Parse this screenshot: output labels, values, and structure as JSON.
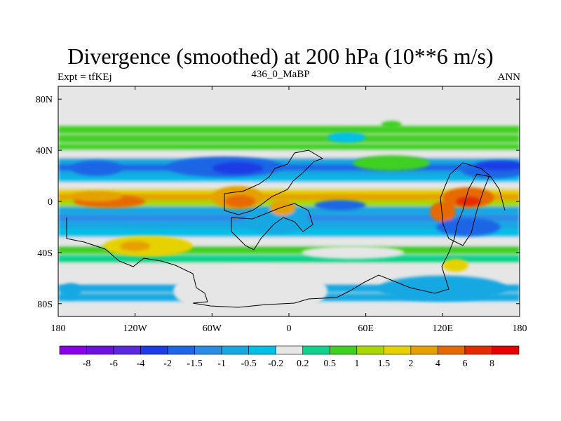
{
  "header": {
    "title": "Divergence (smoothed) at 200 hPa (10**6 m/s)",
    "left_label": "Expt = tfKEj",
    "center_label": "436_0_MaBP",
    "right_label": "ANN"
  },
  "chart_data": {
    "type": "heatmap",
    "title": "Divergence (smoothed) at 200 hPa (10**6 m/s)",
    "xlabel": "",
    "ylabel": "",
    "xlim": [
      -180,
      180
    ],
    "ylim": [
      -90,
      90
    ],
    "x_ticks": [
      {
        "value": -180,
        "label": "180"
      },
      {
        "value": -120,
        "label": "120W"
      },
      {
        "value": -60,
        "label": "60W"
      },
      {
        "value": 0,
        "label": "0"
      },
      {
        "value": 60,
        "label": "60E"
      },
      {
        "value": 120,
        "label": "120E"
      },
      {
        "value": 180,
        "label": "180"
      }
    ],
    "y_ticks": [
      {
        "value": 80,
        "label": "80N"
      },
      {
        "value": 40,
        "label": "40N"
      },
      {
        "value": 0,
        "label": "0"
      },
      {
        "value": -40,
        "label": "40S"
      },
      {
        "value": -80,
        "label": "80S"
      }
    ],
    "colorbar": {
      "levels": [
        "-8",
        "-6",
        "-4",
        "-2",
        "-1.5",
        "-1",
        "-0.5",
        "-0.2",
        "0.2",
        "0.5",
        "1",
        "1.5",
        "2",
        "4",
        "6",
        "8"
      ],
      "colors": [
        "#8a00e8",
        "#7010e0",
        "#5a28e0",
        "#1e3ce6",
        "#1e66e6",
        "#2a8ce6",
        "#16a8e2",
        "#00c0e8",
        "#e6e6e6",
        "#10d28c",
        "#40d020",
        "#a8d800",
        "#e6d200",
        "#e6a000",
        "#e66a00",
        "#e62a00",
        "#e60000"
      ]
    },
    "bands": [
      {
        "lat": 56,
        "value": 0.6
      },
      {
        "lat": 49,
        "value": 0.8
      },
      {
        "lat": 42,
        "value": 0.5
      },
      {
        "lat": 37,
        "value": 0.0
      },
      {
        "lat": 31,
        "value": -0.6
      },
      {
        "lat": 26,
        "value": -2.0
      },
      {
        "lat": 21,
        "value": -1.0
      },
      {
        "lat": 16,
        "value": -0.3
      },
      {
        "lat": 12,
        "value": 0.0
      },
      {
        "lat": 7,
        "value": 1.5
      },
      {
        "lat": 3,
        "value": 2.5
      },
      {
        "lat": -2,
        "value": 1.0
      },
      {
        "lat": -7,
        "value": -1.0
      },
      {
        "lat": -13,
        "value": -1.5
      },
      {
        "lat": -19,
        "value": -0.7
      },
      {
        "lat": -25,
        "value": -0.3
      },
      {
        "lat": -31,
        "value": 0.0
      },
      {
        "lat": -38,
        "value": 0.6
      },
      {
        "lat": -45,
        "value": 0.4
      },
      {
        "lat": -52,
        "value": 0.0
      },
      {
        "lat": -60,
        "value": 0.0
      },
      {
        "lat": -68,
        "value": -0.6
      },
      {
        "lat": -75,
        "value": -0.6
      }
    ],
    "blobs": [
      {
        "lon": -140,
        "lat": 0,
        "rx": 28,
        "ry": 5,
        "value": 4
      },
      {
        "lon": -150,
        "lat": 4,
        "rx": 20,
        "ry": 4,
        "value": 2
      },
      {
        "lon": -50,
        "lat": 27,
        "rx": 45,
        "ry": 8,
        "value": -2
      },
      {
        "lon": -40,
        "lat": 26,
        "rx": 20,
        "ry": 5,
        "value": -4
      },
      {
        "lon": -150,
        "lat": 26,
        "rx": 20,
        "ry": 6,
        "value": -2
      },
      {
        "lon": -40,
        "lat": 3,
        "rx": 20,
        "ry": 9,
        "value": 2
      },
      {
        "lon": -38,
        "lat": 0,
        "rx": 12,
        "ry": 5,
        "value": 4
      },
      {
        "lon": -10,
        "lat": -15,
        "rx": 25,
        "ry": 10,
        "value": -1
      },
      {
        "lon": -5,
        "lat": -5,
        "rx": 10,
        "ry": 6,
        "value": 2
      },
      {
        "lon": 40,
        "lat": -3,
        "rx": 20,
        "ry": 4,
        "value": -2
      },
      {
        "lon": 80,
        "lat": 30,
        "rx": 30,
        "ry": 6,
        "value": 0.8
      },
      {
        "lon": 140,
        "lat": 3,
        "rx": 20,
        "ry": 8,
        "value": 4
      },
      {
        "lon": 140,
        "lat": 0,
        "rx": 10,
        "ry": 4,
        "value": 6
      },
      {
        "lon": 120,
        "lat": -8,
        "rx": 10,
        "ry": 8,
        "value": 4
      },
      {
        "lon": 140,
        "lat": -20,
        "rx": 25,
        "ry": 7,
        "value": -2
      },
      {
        "lon": 160,
        "lat": 24,
        "rx": 25,
        "ry": 6,
        "value": -2
      },
      {
        "lon": 165,
        "lat": 28,
        "rx": 20,
        "ry": 4,
        "value": -4
      },
      {
        "lon": -110,
        "lat": -35,
        "rx": 35,
        "ry": 8,
        "value": 1.5
      },
      {
        "lon": -120,
        "lat": -35,
        "rx": 12,
        "ry": 4,
        "value": 2
      },
      {
        "lon": 130,
        "lat": -50,
        "rx": 10,
        "ry": 5,
        "value": 1.5
      },
      {
        "lon": 50,
        "lat": -40,
        "rx": 40,
        "ry": 5,
        "value": 0
      },
      {
        "lon": 120,
        "lat": -68,
        "rx": 50,
        "ry": 10,
        "value": -1
      },
      {
        "lon": -170,
        "lat": -70,
        "rx": 8,
        "ry": 6,
        "value": -0.6
      },
      {
        "lon": -30,
        "lat": -70,
        "rx": 60,
        "ry": 20,
        "value": 0
      },
      {
        "lon": 45,
        "lat": 50,
        "rx": 15,
        "ry": 4,
        "value": -0.5
      },
      {
        "lon": 80,
        "lat": 60,
        "rx": 8,
        "ry": 3,
        "value": 0.5
      }
    ]
  }
}
